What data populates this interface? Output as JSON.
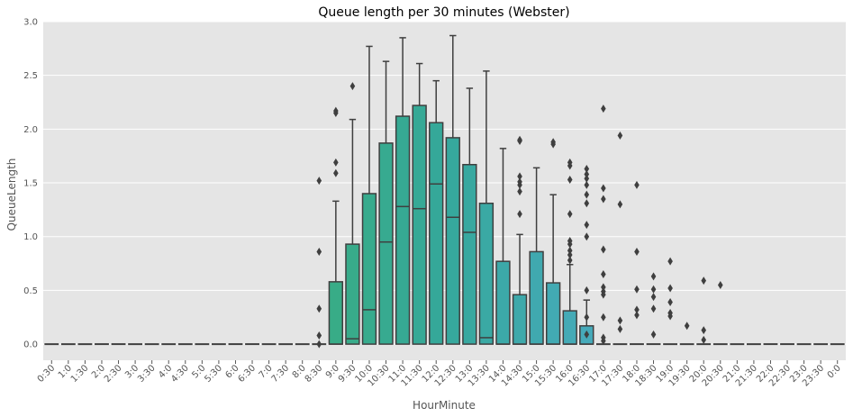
{
  "chart_data": {
    "type": "box",
    "title": "Queue length per 30 minutes (Webster)",
    "xlabel": "HourMinute",
    "ylabel": "QueueLength",
    "ylim": [
      -0.15,
      3.0
    ],
    "yticks": [
      "0.0",
      "0.5",
      "1.0",
      "1.5",
      "2.0",
      "2.5",
      "3.0"
    ],
    "grid": true,
    "categories": [
      "0:30",
      "1:0",
      "1:30",
      "2:0",
      "2:30",
      "3:0",
      "3:30",
      "4:0",
      "4:30",
      "5:0",
      "5:30",
      "6:0",
      "6:30",
      "7:0",
      "7:30",
      "8:0",
      "8:30",
      "9:0",
      "9:30",
      "10:0",
      "10:30",
      "11:0",
      "11:30",
      "12:0",
      "12:30",
      "13:0",
      "13:30",
      "14:0",
      "14:30",
      "15:0",
      "15:30",
      "16:0",
      "16:30",
      "17:0",
      "17:30",
      "18:0",
      "18:30",
      "19:0",
      "19:30",
      "20:0",
      "20:30",
      "21:0",
      "21:30",
      "22:0",
      "22:30",
      "23:0",
      "23:30",
      "0:0"
    ],
    "boxes": [
      {
        "q1": 0,
        "median": 0,
        "q3": 0,
        "whislo": 0,
        "whishi": 0,
        "fliers": []
      },
      {
        "q1": 0,
        "median": 0,
        "q3": 0,
        "whislo": 0,
        "whishi": 0,
        "fliers": []
      },
      {
        "q1": 0,
        "median": 0,
        "q3": 0,
        "whislo": 0,
        "whishi": 0,
        "fliers": []
      },
      {
        "q1": 0,
        "median": 0,
        "q3": 0,
        "whislo": 0,
        "whishi": 0,
        "fliers": []
      },
      {
        "q1": 0,
        "median": 0,
        "q3": 0,
        "whislo": 0,
        "whishi": 0,
        "fliers": []
      },
      {
        "q1": 0,
        "median": 0,
        "q3": 0,
        "whislo": 0,
        "whishi": 0,
        "fliers": []
      },
      {
        "q1": 0,
        "median": 0,
        "q3": 0,
        "whislo": 0,
        "whishi": 0,
        "fliers": []
      },
      {
        "q1": 0,
        "median": 0,
        "q3": 0,
        "whislo": 0,
        "whishi": 0,
        "fliers": []
      },
      {
        "q1": 0,
        "median": 0,
        "q3": 0,
        "whislo": 0,
        "whishi": 0,
        "fliers": []
      },
      {
        "q1": 0,
        "median": 0,
        "q3": 0,
        "whislo": 0,
        "whishi": 0,
        "fliers": []
      },
      {
        "q1": 0,
        "median": 0,
        "q3": 0,
        "whislo": 0,
        "whishi": 0,
        "fliers": []
      },
      {
        "q1": 0,
        "median": 0,
        "q3": 0,
        "whislo": 0,
        "whishi": 0,
        "fliers": []
      },
      {
        "q1": 0,
        "median": 0,
        "q3": 0,
        "whislo": 0,
        "whishi": 0,
        "fliers": []
      },
      {
        "q1": 0,
        "median": 0,
        "q3": 0,
        "whislo": 0,
        "whishi": 0,
        "fliers": []
      },
      {
        "q1": 0,
        "median": 0,
        "q3": 0,
        "whislo": 0,
        "whishi": 0,
        "fliers": []
      },
      {
        "q1": 0,
        "median": 0,
        "q3": 0,
        "whislo": 0,
        "whishi": 0,
        "fliers": []
      },
      {
        "q1": 0,
        "median": 0,
        "q3": 0,
        "whislo": 0,
        "whishi": 0,
        "fliers": [
          1.52,
          0.86,
          0.33,
          0.08,
          0.0
        ]
      },
      {
        "q1": 0,
        "median": 0,
        "q3": 0.58,
        "whislo": 0,
        "whishi": 1.33,
        "fliers": [
          2.17,
          2.15,
          1.69,
          1.59
        ]
      },
      {
        "q1": 0,
        "median": 0.05,
        "q3": 0.93,
        "whislo": 0,
        "whishi": 2.09,
        "fliers": [
          2.4
        ]
      },
      {
        "q1": 0,
        "median": 0.32,
        "q3": 1.4,
        "whislo": 0,
        "whishi": 2.77,
        "fliers": []
      },
      {
        "q1": 0,
        "median": 0.95,
        "q3": 1.87,
        "whislo": 0,
        "whishi": 2.63,
        "fliers": []
      },
      {
        "q1": 0,
        "median": 1.28,
        "q3": 2.12,
        "whislo": 0,
        "whishi": 2.85,
        "fliers": []
      },
      {
        "q1": 0,
        "median": 1.26,
        "q3": 2.22,
        "whislo": 0,
        "whishi": 2.61,
        "fliers": []
      },
      {
        "q1": 0,
        "median": 1.49,
        "q3": 2.06,
        "whislo": 0,
        "whishi": 2.45,
        "fliers": []
      },
      {
        "q1": 0,
        "median": 1.18,
        "q3": 1.92,
        "whislo": 0,
        "whishi": 2.87,
        "fliers": []
      },
      {
        "q1": 0,
        "median": 1.04,
        "q3": 1.67,
        "whislo": 0,
        "whishi": 2.38,
        "fliers": []
      },
      {
        "q1": 0,
        "median": 0.06,
        "q3": 1.31,
        "whislo": 0,
        "whishi": 2.54,
        "fliers": []
      },
      {
        "q1": 0,
        "median": 0,
        "q3": 0.77,
        "whislo": 0,
        "whishi": 1.82,
        "fliers": []
      },
      {
        "q1": 0,
        "median": 0,
        "q3": 0.46,
        "whislo": 0,
        "whishi": 1.02,
        "fliers": [
          1.9,
          1.89,
          1.56,
          1.51,
          1.48,
          1.42,
          1.21
        ]
      },
      {
        "q1": 0,
        "median": 0,
        "q3": 0.86,
        "whislo": 0,
        "whishi": 1.64,
        "fliers": []
      },
      {
        "q1": 0,
        "median": 0,
        "q3": 0.57,
        "whislo": 0,
        "whishi": 1.39,
        "fliers": [
          1.88,
          1.86
        ]
      },
      {
        "q1": 0,
        "median": 0,
        "q3": 0.31,
        "whislo": 0,
        "whishi": 0.74,
        "fliers": [
          1.69,
          1.66,
          1.53,
          1.21,
          0.96,
          0.93,
          0.87,
          0.83,
          0.78
        ]
      },
      {
        "q1": 0,
        "median": 0,
        "q3": 0.17,
        "whislo": 0,
        "whishi": 0.41,
        "fliers": [
          1.63,
          1.58,
          1.54,
          1.48,
          1.39,
          1.31,
          1.11,
          1.0,
          0.5,
          0.25,
          0.09
        ]
      },
      {
        "q1": 0,
        "median": 0,
        "q3": 0,
        "whislo": 0,
        "whishi": 0,
        "fliers": [
          2.19,
          1.45,
          1.35,
          0.88,
          0.65,
          0.53,
          0.49,
          0.46,
          0.25,
          0.06,
          0.03
        ]
      },
      {
        "q1": 0,
        "median": 0,
        "q3": 0,
        "whislo": 0,
        "whishi": 0,
        "fliers": [
          1.94,
          1.3,
          0.22,
          0.14
        ]
      },
      {
        "q1": 0,
        "median": 0,
        "q3": 0,
        "whislo": 0,
        "whishi": 0,
        "fliers": [
          1.48,
          0.86,
          0.51,
          0.32,
          0.27
        ]
      },
      {
        "q1": 0,
        "median": 0,
        "q3": 0,
        "whislo": 0,
        "whishi": 0,
        "fliers": [
          0.63,
          0.51,
          0.44,
          0.33,
          0.09
        ]
      },
      {
        "q1": 0,
        "median": 0,
        "q3": 0,
        "whislo": 0,
        "whishi": 0,
        "fliers": [
          0.77,
          0.52,
          0.39,
          0.29,
          0.26
        ]
      },
      {
        "q1": 0,
        "median": 0,
        "q3": 0,
        "whislo": 0,
        "whishi": 0,
        "fliers": [
          0.17
        ]
      },
      {
        "q1": 0,
        "median": 0,
        "q3": 0,
        "whislo": 0,
        "whishi": 0,
        "fliers": [
          0.59,
          0.13,
          0.04
        ]
      },
      {
        "q1": 0,
        "median": 0,
        "q3": 0,
        "whislo": 0,
        "whishi": 0,
        "fliers": [
          0.55
        ]
      },
      {
        "q1": 0,
        "median": 0,
        "q3": 0,
        "whislo": 0,
        "whishi": 0,
        "fliers": []
      },
      {
        "q1": 0,
        "median": 0,
        "q3": 0,
        "whislo": 0,
        "whishi": 0,
        "fliers": []
      },
      {
        "q1": 0,
        "median": 0,
        "q3": 0,
        "whislo": 0,
        "whishi": 0,
        "fliers": []
      },
      {
        "q1": 0,
        "median": 0,
        "q3": 0,
        "whislo": 0,
        "whishi": 0,
        "fliers": []
      },
      {
        "q1": 0,
        "median": 0,
        "q3": 0,
        "whislo": 0,
        "whishi": 0,
        "fliers": []
      },
      {
        "q1": 0,
        "median": 0,
        "q3": 0,
        "whislo": 0,
        "whishi": 0,
        "fliers": []
      },
      {
        "q1": 0,
        "median": 0,
        "q3": 0,
        "whislo": 0,
        "whishi": 0,
        "fliers": []
      }
    ],
    "colors": {
      "plot_background": "#e5e5e5",
      "grid": "#ffffff",
      "box_edge": "#3f3f3f",
      "palette_start": "#41b653",
      "palette_mid": "#35a89b",
      "palette_end": "#63aef0"
    }
  }
}
